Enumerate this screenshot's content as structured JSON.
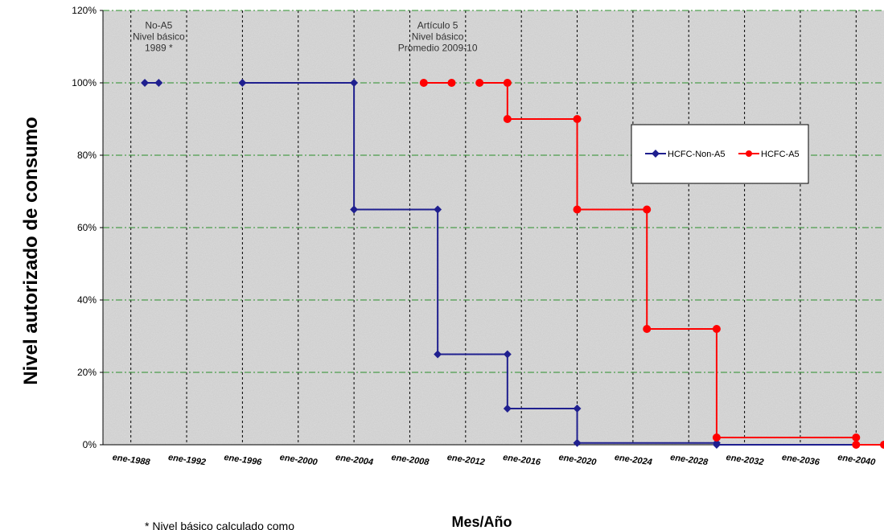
{
  "chart_data": {
    "type": "line",
    "xlabel": "Mes/Año",
    "ylabel": "Nivel autorizado de consumo",
    "x_range": [
      1986,
      2042
    ],
    "ylim": [
      0,
      120
    ],
    "y_ticks": [
      0,
      20,
      40,
      60,
      80,
      100,
      120
    ],
    "y_tick_labels": [
      "0%",
      "20%",
      "40%",
      "60%",
      "80%",
      "100%",
      "120%"
    ],
    "x_ticks": [
      1988,
      1992,
      1996,
      2000,
      2004,
      2008,
      2012,
      2016,
      2020,
      2024,
      2028,
      2032,
      2036,
      2040
    ],
    "x_tick_labels": [
      "ene-1988",
      "ene-1992",
      "ene-1996",
      "ene-2000",
      "ene-2004",
      "ene-2008",
      "ene-2012",
      "ene-2016",
      "ene-2020",
      "ene-2024",
      "ene-2028",
      "ene-2032",
      "ene-2036",
      "ene-2040"
    ],
    "grid": true,
    "legend_position": "right",
    "series": [
      {
        "name": "HCFC-Non-A5",
        "color": "#1f1f8f",
        "marker": "diamond",
        "segments": [
          [
            [
              1989,
              100
            ],
            [
              1990,
              100
            ]
          ],
          [
            [
              1996,
              100
            ],
            [
              2004,
              100
            ],
            [
              2004,
              65
            ],
            [
              2010,
              65
            ],
            [
              2010,
              25
            ],
            [
              2015,
              25
            ],
            [
              2015,
              10
            ],
            [
              2020,
              10
            ],
            [
              2020,
              0.5
            ],
            [
              2030,
              0.5
            ],
            [
              2030,
              0
            ],
            [
              2040,
              0
            ]
          ]
        ]
      },
      {
        "name": "HCFC-A5",
        "color": "#ff0000",
        "marker": "circle",
        "segments": [
          [
            [
              2009,
              100
            ],
            [
              2011,
              100
            ]
          ],
          [
            [
              2013,
              100
            ],
            [
              2015,
              100
            ],
            [
              2015,
              90
            ],
            [
              2020,
              90
            ],
            [
              2020,
              65
            ],
            [
              2025,
              65
            ],
            [
              2025,
              32
            ],
            [
              2030,
              32
            ],
            [
              2030,
              2
            ],
            [
              2040,
              2
            ],
            [
              2040,
              0
            ],
            [
              2042,
              0
            ]
          ]
        ]
      }
    ],
    "annotations": [
      {
        "lines": [
          "No-A5",
          "Nivel básico",
          "1989 *"
        ],
        "x": 1990,
        "y": 115
      },
      {
        "lines": [
          "Artículo 5",
          "Nivel básico",
          "Promedio 2009-10"
        ],
        "x": 2010,
        "y": 115
      }
    ]
  },
  "footnote": "* Nivel básico calculado como"
}
